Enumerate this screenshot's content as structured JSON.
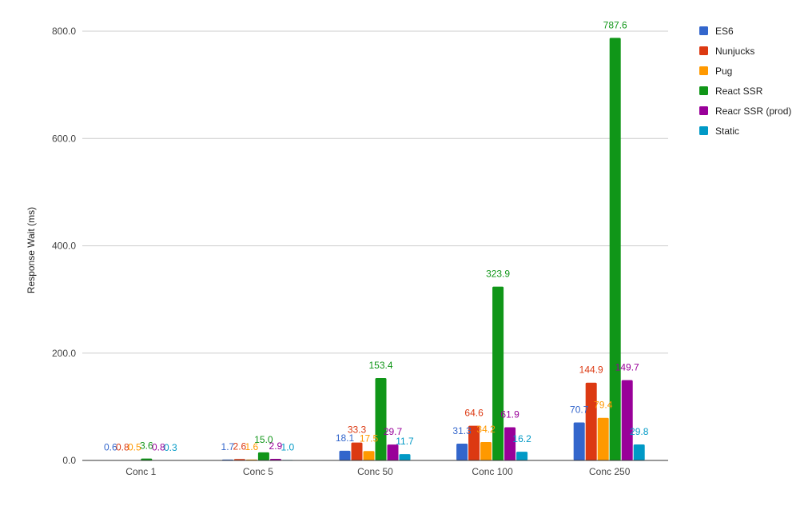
{
  "chart_data": {
    "type": "bar",
    "title": "",
    "xlabel": "",
    "ylabel": "Response Wait (ms)",
    "ylim": [
      0,
      850
    ],
    "yticks": [
      0,
      200,
      400,
      600,
      800
    ],
    "ytick_labels": [
      "0.0",
      "200.0",
      "400.0",
      "600.0",
      "800.0"
    ],
    "grid": true,
    "legend_position": "right",
    "categories": [
      "Conc 1",
      "Conc 5",
      "Conc 50",
      "Conc 100",
      "Conc 250"
    ],
    "series": [
      {
        "name": "ES6",
        "color": "#3366cc",
        "values": [
          0.6,
          1.7,
          18.1,
          31.3,
          70.7
        ],
        "labels": [
          "0.6",
          "1.7",
          "18.1",
          "31.3",
          "70.7"
        ]
      },
      {
        "name": "Nunjucks",
        "color": "#dc3912",
        "values": [
          0.8,
          2.6,
          33.3,
          64.6,
          144.9
        ],
        "labels": [
          "0.8",
          "2.6",
          "33.3",
          "64.6",
          "144.9"
        ]
      },
      {
        "name": "Pug",
        "color": "#ff9900",
        "values": [
          0.5,
          1.6,
          17.5,
          34.2,
          79.4
        ],
        "labels": [
          "0.5",
          "1.6",
          "17.5",
          "34.2",
          "79.4"
        ]
      },
      {
        "name": "React SSR",
        "color": "#109618",
        "values": [
          3.6,
          15.0,
          153.4,
          323.9,
          787.6
        ],
        "labels": [
          "3.6",
          "15.0",
          "153.4",
          "323.9",
          "787.6"
        ]
      },
      {
        "name": "Reacr SSR (prod)",
        "color": "#990099",
        "values": [
          0.8,
          2.9,
          29.7,
          61.9,
          149.7
        ],
        "labels": [
          "0.8",
          "2.9",
          "29.7",
          "61.9",
          "149.7"
        ]
      },
      {
        "name": "Static",
        "color": "#0099c6",
        "values": [
          0.3,
          1.0,
          11.7,
          16.2,
          29.8
        ],
        "labels": [
          "0.3",
          "1.0",
          "11.7",
          "16.2",
          "29.8"
        ]
      }
    ]
  }
}
